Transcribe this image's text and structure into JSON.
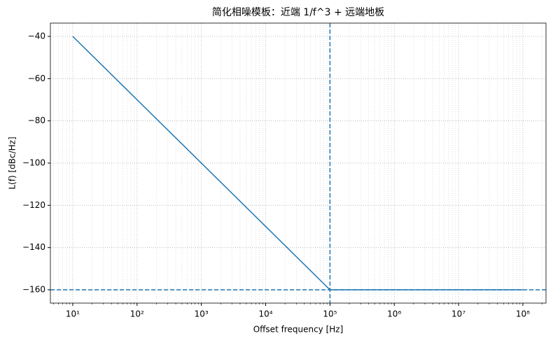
{
  "chart_data": {
    "type": "line",
    "title": "简化相噪模板：近端 1/f^3 + 远端地板",
    "x_label": "Offset frequency [Hz]",
    "y_label": "L(f) [dBc/Hz]",
    "log_x": true,
    "grid": true,
    "minor_grid": true,
    "xlim": [
      4.49,
      229000000
    ],
    "ylim": [
      -166.3,
      -33.7
    ],
    "xticks": [
      {
        "value": 10,
        "label": "10¹"
      },
      {
        "value": 100,
        "label": "10²"
      },
      {
        "value": 1000,
        "label": "10³"
      },
      {
        "value": 10000,
        "label": "10⁴"
      },
      {
        "value": 100000,
        "label": "10⁵"
      },
      {
        "value": 1000000,
        "label": "10⁶"
      },
      {
        "value": 10000000,
        "label": "10⁷"
      },
      {
        "value": 100000000,
        "label": "10⁸"
      }
    ],
    "yticks": [
      {
        "value": -40,
        "label": "−40"
      },
      {
        "value": -60,
        "label": "−60"
      },
      {
        "value": -80,
        "label": "−80"
      },
      {
        "value": -100,
        "label": "−100"
      },
      {
        "value": -120,
        "label": "−120"
      },
      {
        "value": -140,
        "label": "−140"
      },
      {
        "value": -160,
        "label": "−160"
      }
    ],
    "series": [
      {
        "color": "#1f77b4",
        "x": [
          10,
          100000,
          100000000
        ],
        "values": [
          -40,
          -160,
          -160
        ]
      }
    ],
    "hlines": [
      {
        "value": -160,
        "color": "#1f77b4"
      }
    ],
    "vlines": [
      {
        "value": 100000,
        "color": "#1f77b4"
      }
    ]
  }
}
